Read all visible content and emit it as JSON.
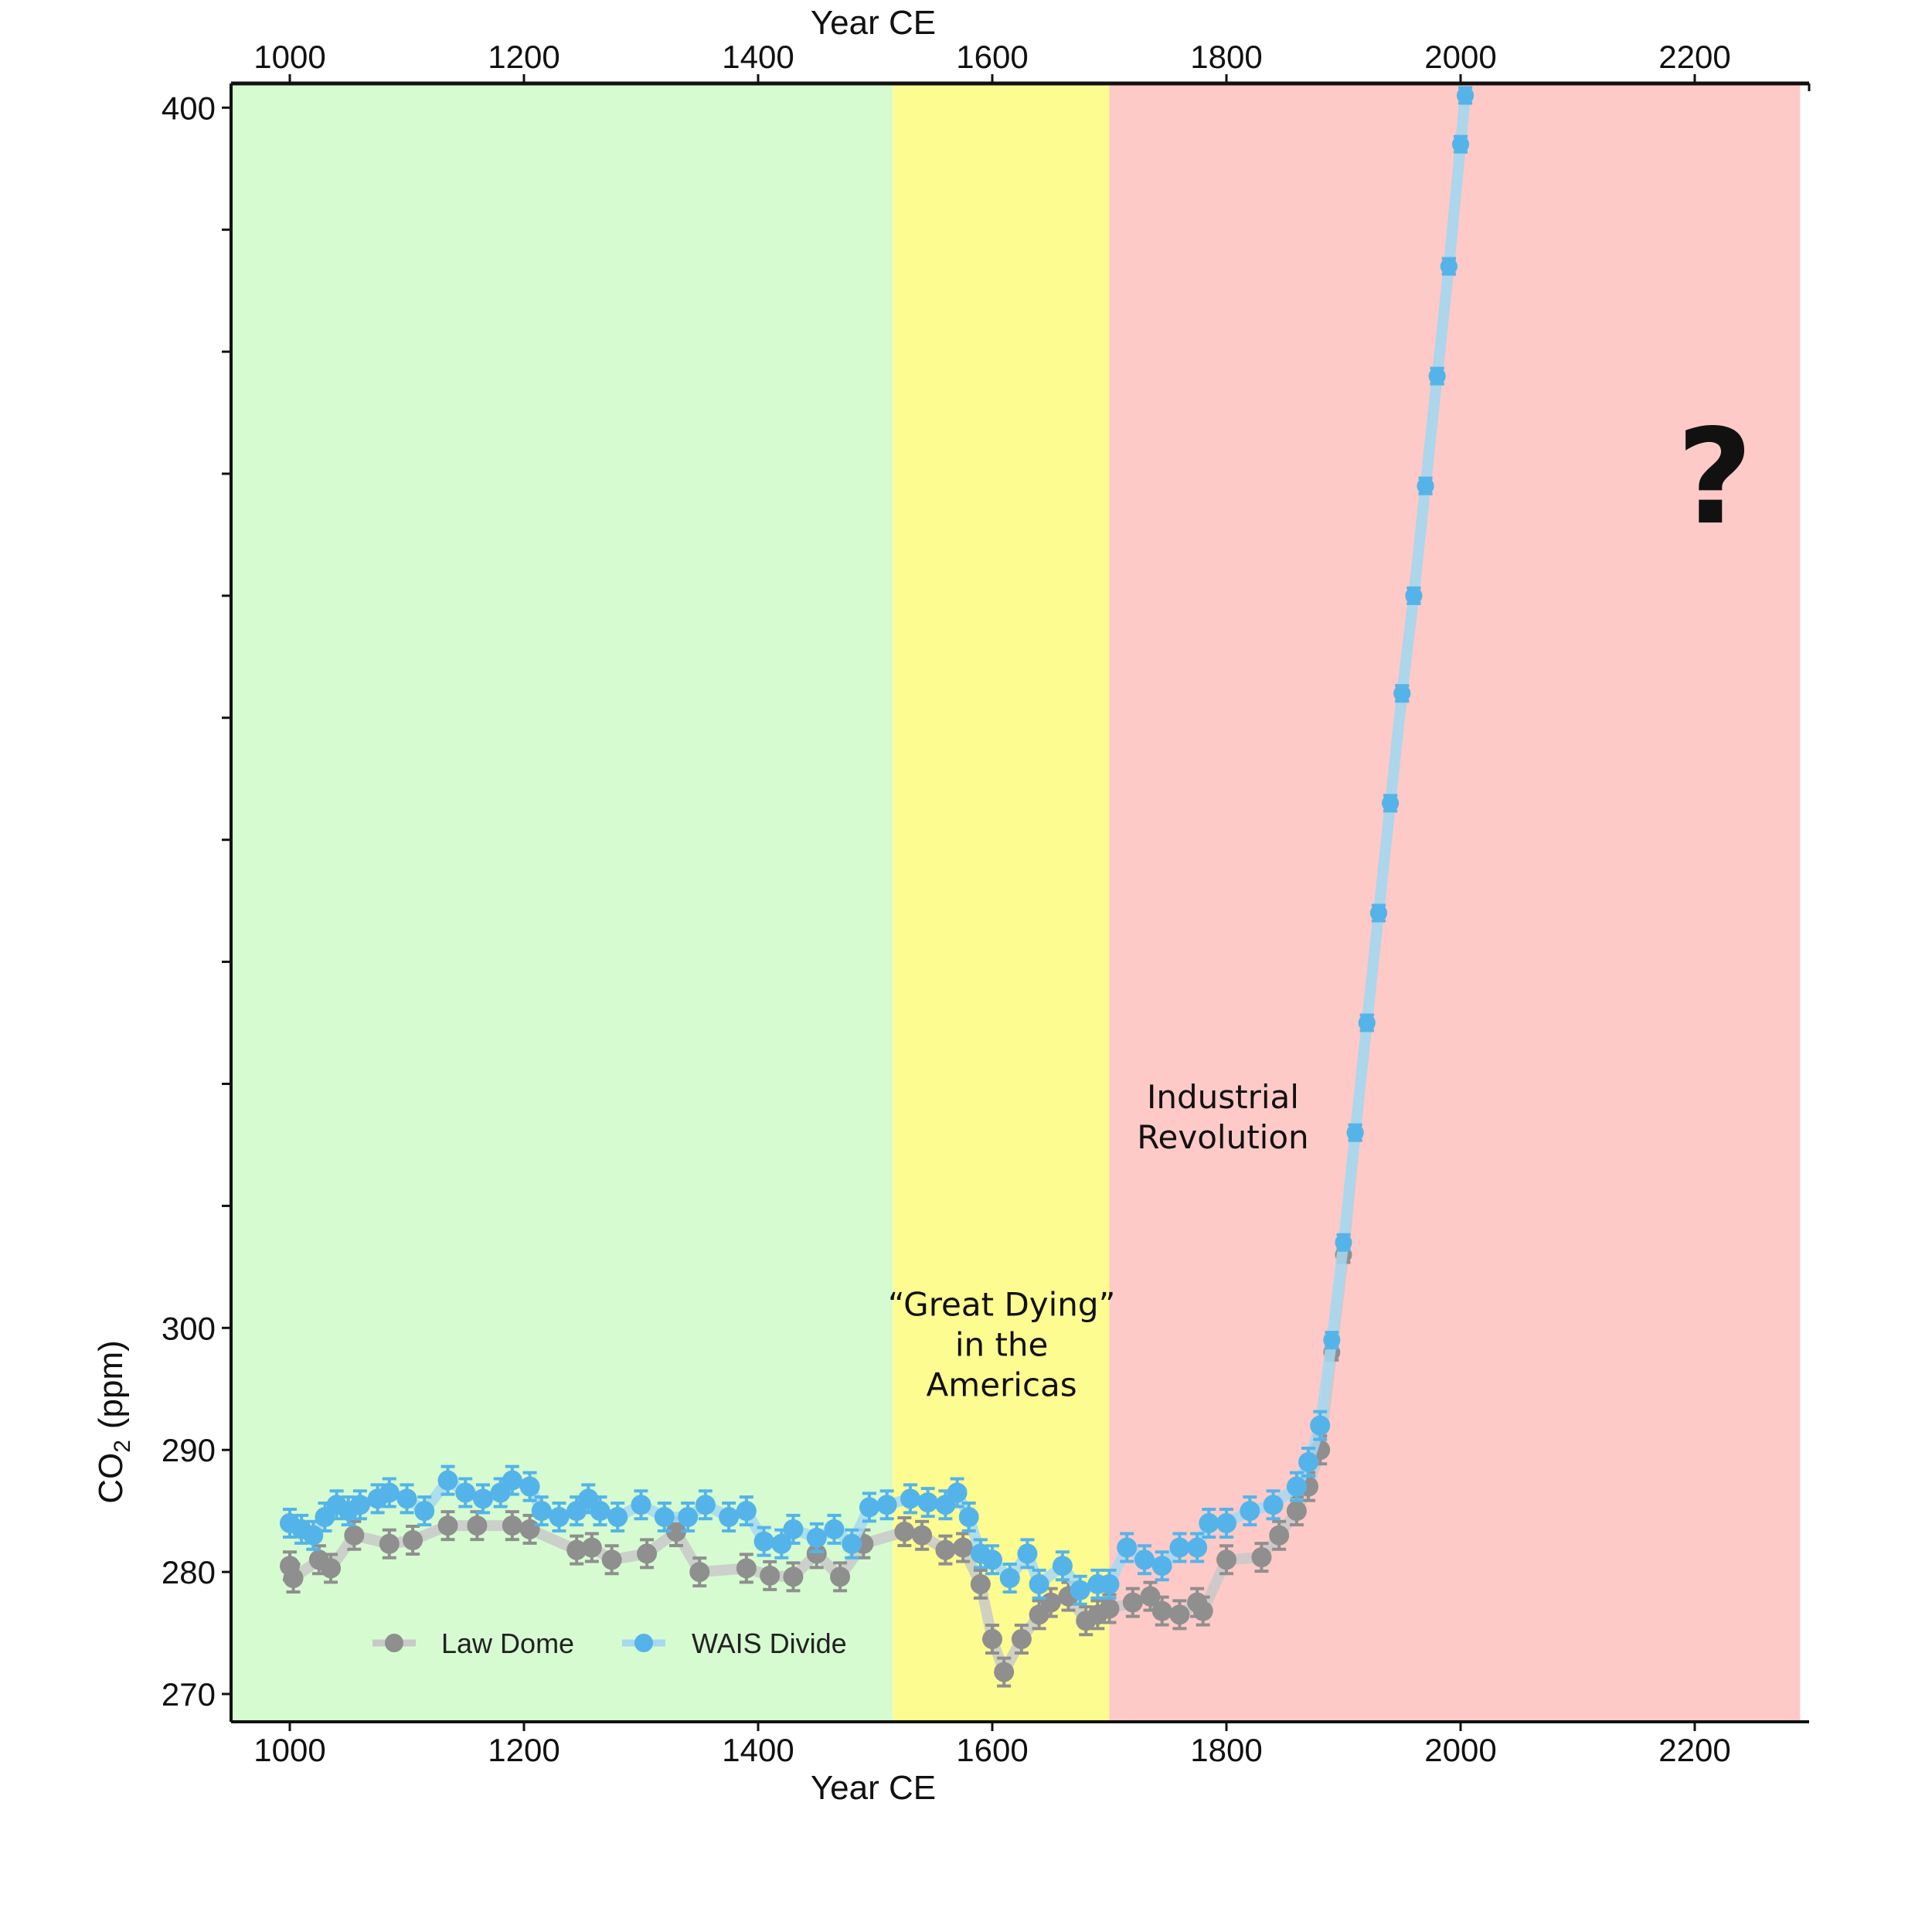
{
  "chart_data": {
    "type": "scatter",
    "title": "",
    "xlabel": "Year CE",
    "xlabel_top": "Year CE",
    "ylabel": "CO2 (ppm)",
    "ylabel_main": "CO",
    "ylabel_sub": "2",
    "ylabel_unit": "(ppm)",
    "xlim": [
      950,
      2290
    ],
    "ylim": [
      267.8,
      401.9
    ],
    "x_ticks": [
      1000,
      1200,
      1400,
      1600,
      1800,
      2000,
      2200
    ],
    "x_tick_labels": [
      "1000",
      "1200",
      "1400",
      "1600",
      "1800",
      "2000",
      "2200"
    ],
    "y_ticks": [
      270,
      280,
      290,
      300,
      310,
      320,
      330,
      340,
      350,
      360,
      370,
      380,
      390,
      400
    ],
    "y_tick_labels": [
      "270",
      "280",
      "290",
      "300",
      "",
      "",
      "",
      "",
      "",
      "",
      "",
      "",
      "",
      "400"
    ],
    "grid": false,
    "legend_position": "bottom-left",
    "bands": [
      {
        "name": "pre-contact",
        "from": 950,
        "to": 1515,
        "color": "#d6fbd1"
      },
      {
        "name": "great-dying",
        "from": 1515,
        "to": 1700,
        "color": "#fdfc91"
      },
      {
        "name": "industrial",
        "from": 1700,
        "to": 2290,
        "color": "#fecac7"
      }
    ],
    "annotations": [
      {
        "name": "great-dying-label",
        "lines": [
          "“Great Dying”",
          "in the",
          "Americas"
        ],
        "x": 1608,
        "y": 301
      },
      {
        "name": "industrial-revolution-label",
        "lines": [
          "Industrial",
          "Revolution"
        ],
        "x": 1797,
        "y": 318
      },
      {
        "name": "question-mark",
        "lines": [
          "?"
        ],
        "x": 2217,
        "y": 366
      }
    ],
    "series": [
      {
        "name": "Law Dome",
        "color": "#8f8f8f",
        "line_color": "#c9c9c9",
        "x": [
          1000,
          1003,
          1025,
          1035,
          1055,
          1085,
          1105,
          1135,
          1160,
          1190,
          1205,
          1245,
          1258,
          1275,
          1305,
          1330,
          1350,
          1390,
          1410,
          1430,
          1450,
          1470,
          1490,
          1525,
          1540,
          1560,
          1575,
          1590,
          1600,
          1610,
          1625,
          1640,
          1650,
          1665,
          1680,
          1690,
          1700,
          1720,
          1735,
          1745,
          1760,
          1775,
          1780,
          1800,
          1830,
          1845,
          1860,
          1870,
          1880,
          1890,
          1900,
          1910,
          1920,
          1930,
          1940,
          1950,
          1960,
          1970,
          1980,
          1990,
          2000,
          2004
        ],
        "y": [
          280.5,
          279.5,
          281,
          280.3,
          283,
          282.3,
          282.6,
          283.8,
          283.8,
          283.8,
          283.5,
          281.8,
          282,
          281,
          281.5,
          283.3,
          280,
          280.3,
          279.7,
          279.6,
          281.5,
          279.6,
          282.3,
          283.3,
          283,
          281.8,
          282,
          279,
          274.5,
          271.8,
          274.5,
          276.5,
          277.5,
          278,
          276,
          276.5,
          277,
          277.5,
          278,
          276.8,
          276.5,
          277.5,
          276.8,
          281,
          281.2,
          283,
          285,
          287,
          290,
          298,
          306,
          316,
          325,
          334,
          343,
          352,
          360,
          369,
          378,
          387,
          397,
          401
        ]
      },
      {
        "name": "WAIS Divide",
        "color": "#54b4e9",
        "line_color": "#a6d8f1",
        "x": [
          1000,
          1010,
          1020,
          1030,
          1040,
          1050,
          1060,
          1075,
          1085,
          1100,
          1115,
          1135,
          1150,
          1165,
          1180,
          1190,
          1205,
          1215,
          1230,
          1245,
          1255,
          1265,
          1280,
          1300,
          1320,
          1340,
          1355,
          1375,
          1390,
          1405,
          1420,
          1430,
          1450,
          1465,
          1480,
          1495,
          1510,
          1530,
          1545,
          1560,
          1570,
          1580,
          1590,
          1600,
          1615,
          1630,
          1640,
          1660,
          1675,
          1690,
          1700,
          1715,
          1730,
          1745,
          1760,
          1775,
          1785,
          1800,
          1820,
          1840,
          1860,
          1870,
          1880,
          1890,
          1900,
          1910,
          1920,
          1930,
          1940,
          1950,
          1960,
          1970,
          1980,
          1990,
          2000,
          2004
        ],
        "y": [
          284,
          283.5,
          283,
          284.5,
          285.5,
          285,
          285.5,
          286,
          286.5,
          286,
          285,
          287.5,
          286.5,
          286,
          286.5,
          287.5,
          287,
          285,
          284.5,
          285,
          286,
          285,
          284.5,
          285.5,
          284.5,
          284.5,
          285.5,
          284.5,
          285,
          282.5,
          282.3,
          283.5,
          282.8,
          283.5,
          282.3,
          285.3,
          285.5,
          286,
          285.7,
          285.5,
          286.5,
          284.5,
          281.5,
          281,
          279.5,
          281.5,
          279,
          280.5,
          278.5,
          279,
          279,
          282,
          281,
          280.5,
          282,
          282,
          284,
          284,
          285,
          285.5,
          287,
          289,
          292,
          299,
          307,
          316,
          325,
          334,
          343,
          352,
          360,
          369,
          378,
          387,
          397,
          401
        ]
      }
    ]
  }
}
